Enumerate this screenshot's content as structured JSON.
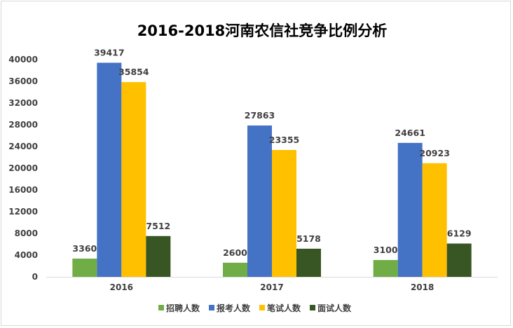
{
  "chart_data": {
    "type": "bar",
    "title": "2016-2018河南农信社竞争比例分析",
    "xlabel": "",
    "ylabel": "",
    "categories": [
      "2016",
      "2017",
      "2018"
    ],
    "ylim": [
      0,
      40000
    ],
    "yticks": [
      0,
      4000,
      8000,
      12000,
      16000,
      20000,
      24000,
      28000,
      32000,
      36000,
      40000
    ],
    "grid": false,
    "legend_position": "bottom",
    "series": [
      {
        "name": "招聘人数",
        "color": "#70ad47",
        "values": [
          3360,
          2600,
          3100
        ]
      },
      {
        "name": "报考人数",
        "color": "#4472c4",
        "values": [
          39417,
          27863,
          24661
        ]
      },
      {
        "name": "笔试人数",
        "color": "#ffc000",
        "values": [
          35854,
          23355,
          20923
        ]
      },
      {
        "name": "面试人数",
        "color": "#375623",
        "values": [
          7512,
          5178,
          6129
        ]
      }
    ]
  }
}
